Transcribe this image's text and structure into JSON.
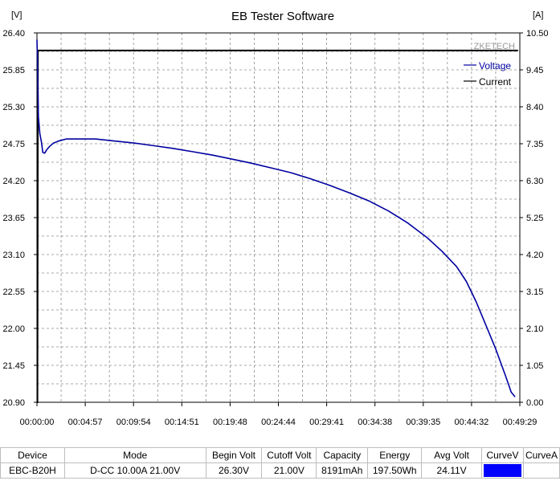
{
  "window": {
    "title": "EB Tester Software"
  },
  "chart_data": {
    "type": "line",
    "title": "EB Tester Software",
    "watermark": "ZKETECH",
    "left_unit": "[V]",
    "right_unit": "[A]",
    "ylim": [
      20.9,
      26.4
    ],
    "y2lim": [
      0.0,
      10.5
    ],
    "y_ticks": [
      "26.40",
      "25.85",
      "25.30",
      "24.75",
      "24.20",
      "23.65",
      "23.10",
      "22.55",
      "22.00",
      "21.45",
      "20.90"
    ],
    "y2_ticks": [
      "10.50",
      "9.45",
      "8.40",
      "7.35",
      "6.30",
      "5.25",
      "4.20",
      "3.15",
      "2.10",
      "1.05",
      "0.00"
    ],
    "x_ticks": [
      "00:00:00",
      "00:04:57",
      "00:09:54",
      "00:14:51",
      "00:19:48",
      "00:24:44",
      "00:29:41",
      "00:34:38",
      "00:39:35",
      "00:44:32",
      "00:49:29"
    ],
    "grid": true,
    "legend_position": "top-right",
    "colors": {
      "voltage": "#0000a0",
      "current": "#000000",
      "grid": "#8c8c8c"
    },
    "series": [
      {
        "name": "Voltage",
        "axis": "left",
        "x_minutes": [
          0,
          0.05,
          0.15,
          0.3,
          0.45,
          0.6,
          0.8,
          1.0,
          1.3,
          1.7,
          2.2,
          3.0,
          4.0,
          5.0,
          6.0,
          8.0,
          10.0,
          12.0,
          14.0,
          16.0,
          18.0,
          20.0,
          22.0,
          24.0,
          26.0,
          28.0,
          30.0,
          32.0,
          34.0,
          36.0,
          38.0,
          40.0,
          41.5,
          43.0,
          44.0,
          45.0,
          46.0,
          47.0,
          48.0,
          48.6,
          49.0
        ],
        "values": [
          26.3,
          26.0,
          25.15,
          24.9,
          24.78,
          24.62,
          24.61,
          24.66,
          24.71,
          24.76,
          24.79,
          24.82,
          24.82,
          24.82,
          24.82,
          24.79,
          24.76,
          24.72,
          24.68,
          24.63,
          24.58,
          24.52,
          24.46,
          24.39,
          24.32,
          24.23,
          24.13,
          24.02,
          23.9,
          23.75,
          23.57,
          23.35,
          23.15,
          22.92,
          22.7,
          22.4,
          22.05,
          21.7,
          21.3,
          21.05,
          20.98
        ]
      },
      {
        "name": "Current",
        "axis": "right",
        "x_minutes": [
          0,
          0.05,
          0.1,
          49.3
        ],
        "values": [
          0.0,
          0.0,
          10.0,
          10.0
        ]
      }
    ]
  },
  "table": {
    "columns": [
      "Device",
      "Mode",
      "Begin Volt",
      "Cutoff Volt",
      "Capacity",
      "Energy",
      "Avg Volt",
      "CurveV",
      "CurveA"
    ],
    "row": [
      "EBC-B20H",
      "D-CC  10.00A  21.00V",
      "26.30V",
      "21.00V",
      "8191mAh",
      "197.50Wh",
      "24.11V",
      "",
      ""
    ],
    "curve_v_color": "#0000ff"
  }
}
